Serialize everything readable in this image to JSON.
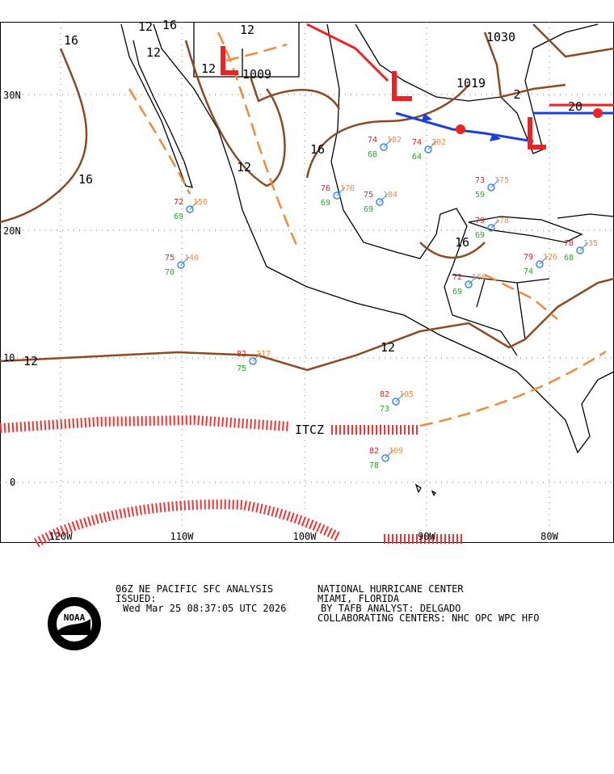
{
  "map": {
    "lat_labels": [
      "30N",
      "20N",
      "10",
      "0"
    ],
    "lon_labels": [
      "120W",
      "110W",
      "100W",
      "90W",
      "80W"
    ],
    "isobar_labels": [
      "16",
      "12",
      "16",
      "12",
      "12",
      "12",
      "12",
      "16",
      "16",
      "12",
      "12",
      "16",
      "20",
      "2"
    ],
    "pressure_centers": [
      "1009",
      "1019",
      "1030"
    ],
    "itcz": "ITCZ",
    "stations": [
      {
        "t": "72",
        "p": "150",
        "d": "69"
      },
      {
        "t": "75",
        "p": "140",
        "d": "70"
      },
      {
        "t": "82",
        "p": "117",
        "d": "75"
      },
      {
        "t": "82",
        "p": "105",
        "d": "73"
      },
      {
        "t": "82",
        "p": "109",
        "d": "78"
      },
      {
        "t": "76",
        "p": "176",
        "d": "69"
      },
      {
        "t": "75",
        "p": "184",
        "d": "69"
      },
      {
        "t": "74",
        "p": "182",
        "d": "68"
      },
      {
        "t": "74",
        "p": "202",
        "d": "64"
      },
      {
        "t": "73",
        "p": "175",
        "d": "59"
      },
      {
        "t": "79",
        "p": "178",
        "d": "69"
      },
      {
        "t": "78",
        "p": "135",
        "d": "68"
      },
      {
        "t": "79",
        "p": "126",
        "d": "74"
      },
      {
        "t": "72",
        "p": "160",
        "d": "69"
      }
    ]
  },
  "footer": {
    "product": "06Z NE PACIFIC SFC ANALYSIS",
    "issued": "ISSUED:",
    "date": "Wed Mar 25 08:37:05 UTC 2026",
    "center": "NATIONAL HURRICANE CENTER",
    "location": "MIAMI, FLORIDA",
    "analyst": "BY TAFB ANALYST: DELGADO",
    "collab": "COLLABORATING CENTERS: NHC OPC WPC HFO"
  },
  "logo": "NOAA"
}
